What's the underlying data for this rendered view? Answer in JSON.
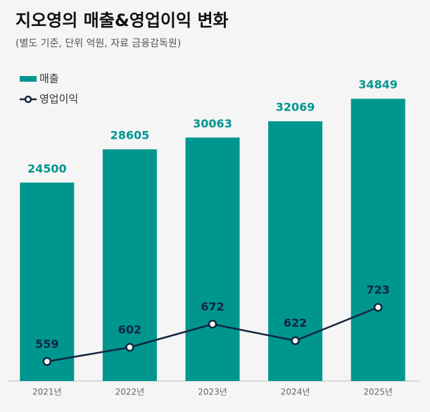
{
  "chart_data": {
    "type": "bar",
    "title": "지오영의 매출&영업이익 변화",
    "subtitle": "(별도 기준, 단위 억원, 자료 금융감독원)",
    "categories": [
      "2021년",
      "2022년",
      "2023년",
      "2024년",
      "2025년"
    ],
    "series": [
      {
        "name": "매출",
        "color": "#009690",
        "values": [
          24500,
          28605,
          30063,
          32069,
          34849
        ]
      },
      {
        "name": "영업이익",
        "color": "#13253f",
        "type": "line",
        "axis": "y2",
        "values": [
          559,
          602,
          672,
          622,
          723
        ]
      }
    ],
    "ylim": [
      0,
      40000
    ],
    "y2lim": [
      500,
      1480
    ],
    "grid": false,
    "legend": "top-left"
  }
}
